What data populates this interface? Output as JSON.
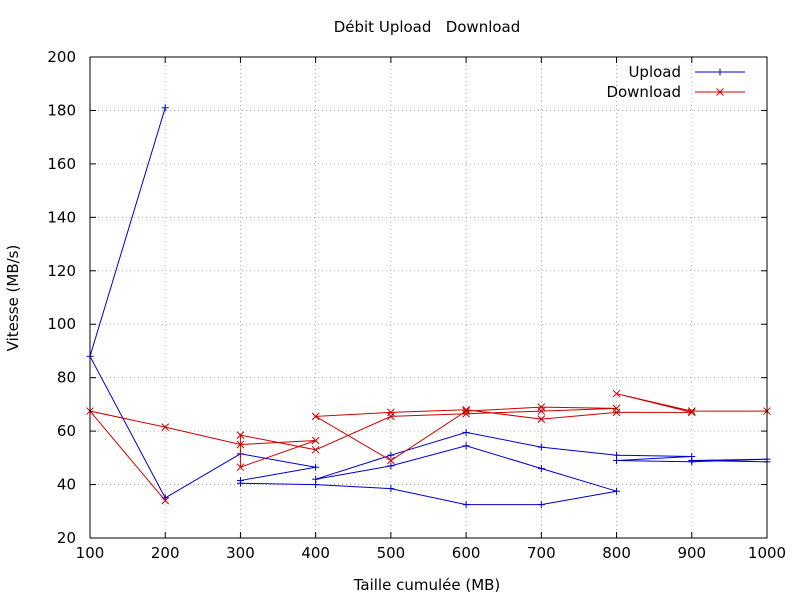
{
  "chart_data": {
    "type": "line",
    "title": "Débit Upload   Download",
    "xlabel": "Taille cumulée (MB)",
    "ylabel": "Vitesse (MB/s)",
    "xlim": [
      100,
      1000
    ],
    "ylim": [
      20,
      200
    ],
    "xticks": [
      100,
      200,
      300,
      400,
      500,
      600,
      700,
      800,
      900,
      1000
    ],
    "yticks": [
      20,
      40,
      60,
      80,
      100,
      120,
      140,
      160,
      180,
      200
    ],
    "grid": true,
    "legend_position": "top-right",
    "series": [
      {
        "name": "Upload",
        "color": "#0000cc",
        "marker": "plus",
        "x": [
          200,
          100,
          200,
          300,
          400,
          300,
          300,
          400,
          500,
          600,
          700,
          800,
          700,
          600,
          500,
          400,
          500,
          600,
          700,
          800,
          900,
          800,
          900,
          1000,
          900,
          1000
        ],
        "y": [
          181,
          88,
          35,
          51.5,
          46.5,
          41.5,
          40.5,
          40,
          38.5,
          32.5,
          32.5,
          37.5,
          46,
          54.5,
          47,
          42,
          51,
          59.5,
          54,
          51,
          50.5,
          49,
          48.5,
          49.5,
          49,
          48.5
        ]
      },
      {
        "name": "Download",
        "color": "#cc0000",
        "marker": "x",
        "x": [
          200,
          100,
          200,
          300,
          400,
          300,
          300,
          400,
          500,
          600,
          700,
          800,
          700,
          600,
          500,
          400,
          500,
          600,
          700,
          800,
          900,
          800,
          900,
          1000
        ],
        "y": [
          34,
          67.5,
          61.5,
          55,
          56.5,
          46.5,
          58.5,
          53,
          65.5,
          66.5,
          67.5,
          68.5,
          69,
          67.5,
          49,
          65.5,
          67,
          68,
          64.5,
          67,
          67,
          74,
          67.5,
          67.5
        ]
      }
    ]
  }
}
